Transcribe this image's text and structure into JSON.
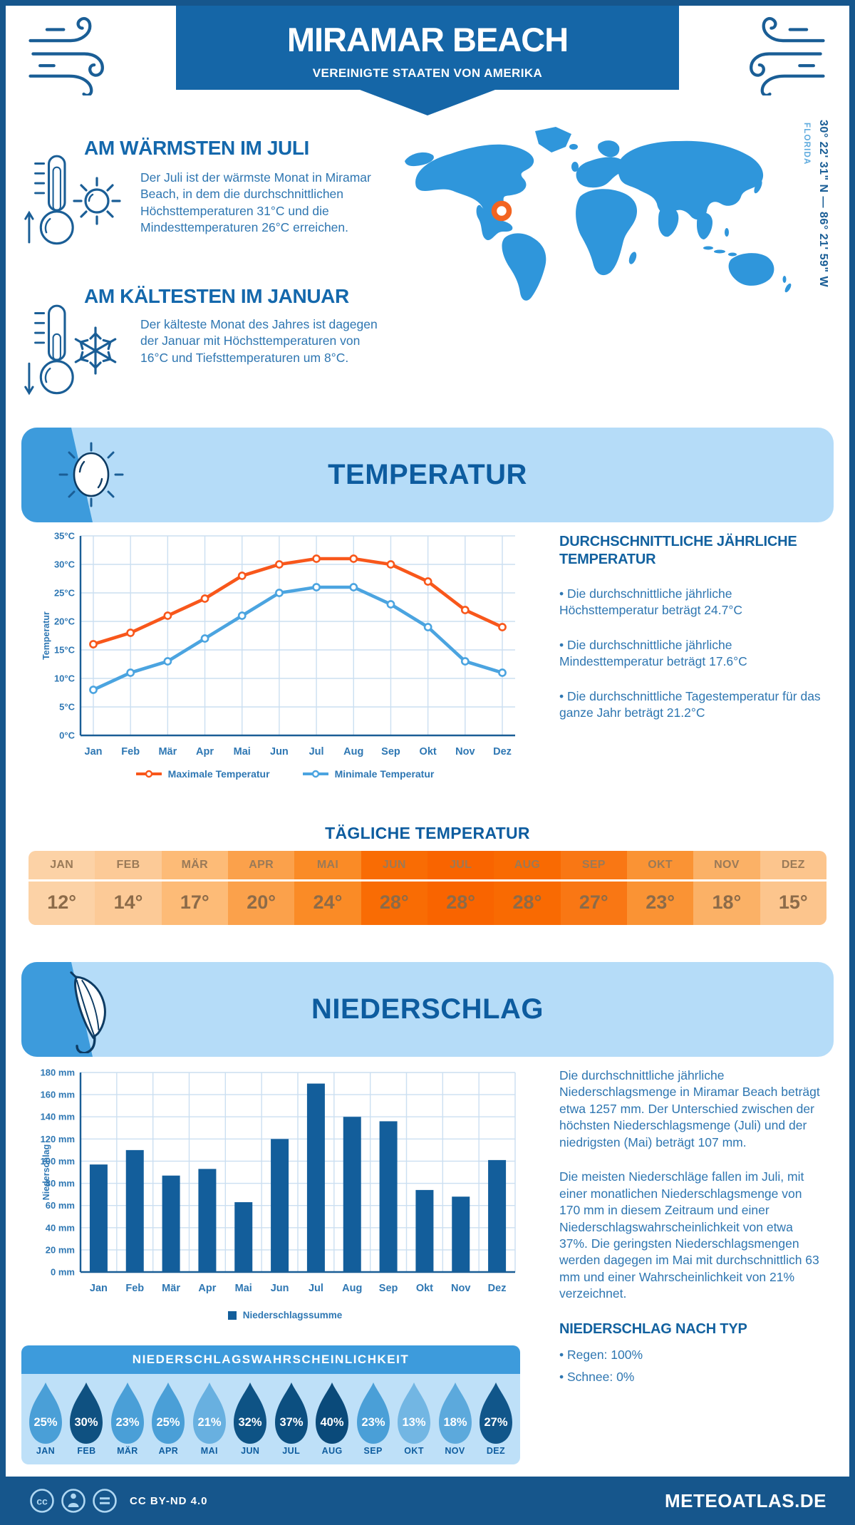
{
  "page": {
    "header": {
      "title": "MIRAMAR BEACH",
      "subtitle": "VEREINIGTE STAATEN VON AMERIKA"
    },
    "highlights": [
      {
        "title": "AM WÄRMSTEN IM JULI",
        "text": "Der Juli ist der wärmste Monat in Miramar Beach, in dem die durchschnittlichen Höchsttemperaturen 31°C und die Mindesttemperaturen 26°C erreichen."
      },
      {
        "title": "AM KÄLTESTEN IM JANUAR",
        "text": "Der kälteste Monat des Jahres ist dagegen der Januar mit Höchsttemperaturen von 16°C und Tiefsttemperaturen um 8°C."
      }
    ],
    "map": {
      "region_label": "FLORIDA",
      "coordinates": "30° 22' 31\" N — 86° 21' 59\" W"
    },
    "temperature": {
      "banner_title": "TEMPERATUR",
      "summary_heading": "DURCHSCHNITTLICHE JÄHRLICHE TEMPERATUR",
      "bullets": [
        "• Die durchschnittliche jährliche Höchsttemperatur beträgt 24.7°C",
        "• Die durchschnittliche jährliche Mindesttemperatur beträgt 17.6°C",
        "• Die durchschnittliche Tagestemperatur für das ganze Jahr beträgt 21.2°C"
      ]
    },
    "daily": {
      "heading": "TÄGLICHE TEMPERATUR",
      "months": [
        "JAN",
        "FEB",
        "MÄR",
        "APR",
        "MAI",
        "JUN",
        "JUL",
        "AUG",
        "SEP",
        "OKT",
        "NOV",
        "DEZ"
      ],
      "values": [
        "12°",
        "14°",
        "17°",
        "20°",
        "24°",
        "28°",
        "28°",
        "28°",
        "27°",
        "23°",
        "18°",
        "15°"
      ],
      "colors": [
        "#FCD2A6",
        "#FCCA97",
        "#FDBB77",
        "#FBA14B",
        "#FA8B26",
        "#F96C04",
        "#F96400",
        "#F96A02",
        "#F97714",
        "#FA9334",
        "#FBB166",
        "#FCC58D"
      ]
    },
    "precipitation": {
      "banner_title": "NIEDERSCHLAG",
      "paragraphs": [
        "Die durchschnittliche jährliche Niederschlagsmenge in Miramar Beach beträgt etwa 1257 mm. Der Unterschied zwischen der höchsten Niederschlagsmenge (Juli) und der niedrigsten (Mai) beträgt 107 mm.",
        "Die meisten Niederschläge fallen im Juli, mit einer monatlichen Niederschlagsmenge von 170 mm in diesem Zeitraum und einer Niederschlagswahrscheinlichkeit von etwa 37%. Die geringsten Niederschlagsmengen werden dagegen im Mai mit durchschnittlich 63 mm und einer Wahrscheinlichkeit von 21% verzeichnet."
      ],
      "type_heading": "NIEDERSCHLAG NACH TYP",
      "type_bullets": [
        "• Regen: 100%",
        "• Schnee: 0%"
      ]
    },
    "probability": {
      "heading": "NIEDERSCHLAGSWAHRSCHEINLICHKEIT",
      "months": [
        "JAN",
        "FEB",
        "MÄR",
        "APR",
        "MAI",
        "JUN",
        "JUL",
        "AUG",
        "SEP",
        "OKT",
        "NOV",
        "DEZ"
      ],
      "values": [
        "25%",
        "30%",
        "23%",
        "25%",
        "21%",
        "32%",
        "37%",
        "40%",
        "23%",
        "13%",
        "18%",
        "27%"
      ],
      "colors": [
        "#4A9FD7",
        "#0F5181",
        "#4A9FD7",
        "#4A9FD7",
        "#68B0E0",
        "#0E5385",
        "#0C4F80",
        "#0A4A7A",
        "#4A9FD7",
        "#72B6E3",
        "#5CA9DC",
        "#11568A"
      ]
    },
    "footer": {
      "license": "CC BY-ND 4.0",
      "site": "METEOATLAS.DE"
    }
  },
  "chart_data": [
    {
      "type": "line",
      "x": [
        "Jan",
        "Feb",
        "Mär",
        "Apr",
        "Mai",
        "Jun",
        "Jul",
        "Aug",
        "Sep",
        "Okt",
        "Nov",
        "Dez"
      ],
      "ylabel": "Temperatur",
      "ylim": [
        0,
        35
      ],
      "ytick_step": 5,
      "ytick_suffix": "°C",
      "grid": true,
      "legend_position": "bottom",
      "series": [
        {
          "name": "Maximale Temperatur",
          "color": "#F8571B",
          "values": [
            16,
            18,
            21,
            24,
            28,
            30,
            31,
            31,
            30,
            27,
            22,
            19
          ]
        },
        {
          "name": "Minimale Temperatur",
          "color": "#4BA4E0",
          "values": [
            8,
            11,
            13,
            17,
            21,
            25,
            26,
            26,
            23,
            19,
            13,
            11
          ]
        }
      ]
    },
    {
      "type": "bar",
      "x": [
        "Jan",
        "Feb",
        "Mär",
        "Apr",
        "Mai",
        "Jun",
        "Jul",
        "Aug",
        "Sep",
        "Okt",
        "Nov",
        "Dez"
      ],
      "ylabel": "Niederschlag",
      "ylim": [
        0,
        180
      ],
      "ytick_step": 20,
      "ytick_suffix": " mm",
      "grid": true,
      "bar_color": "#135E9B",
      "legend_label": "Niederschlagssumme",
      "values": [
        97,
        110,
        87,
        93,
        63,
        120,
        170,
        140,
        136,
        74,
        68,
        101
      ]
    }
  ]
}
